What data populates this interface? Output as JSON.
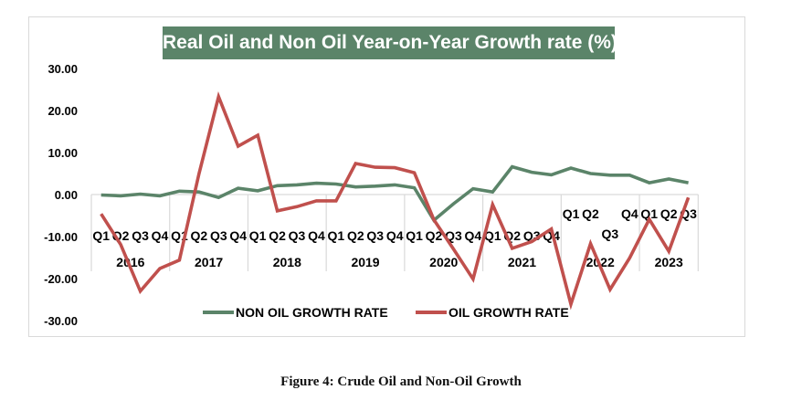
{
  "caption": "Figure 4: Crude Oil and Non-Oil Growth",
  "colors": {
    "non_oil": "#5b8469",
    "oil": "#c0504d",
    "title_bg": "#5b8469",
    "grid": "#d9d9d9"
  },
  "chart_data": {
    "type": "line",
    "title": "Real Oil and Non Oil Year-on-Year Growth rate (%)",
    "xlabel": "",
    "ylabel": "",
    "ylim": [
      -30,
      30
    ],
    "yticks": [
      "30.00",
      "20.00",
      "10.00",
      "0.00",
      "-10.00",
      "-20.00",
      "-30.00"
    ],
    "grid": false,
    "legend_position": "bottom",
    "years": [
      {
        "label": "2016",
        "quarters": [
          "Q1",
          "Q2",
          "Q3",
          "Q4"
        ]
      },
      {
        "label": "2017",
        "quarters": [
          "Q1",
          "Q2",
          "Q3",
          "Q4"
        ]
      },
      {
        "label": "2018",
        "quarters": [
          "Q1",
          "Q2",
          "Q3",
          "Q4"
        ]
      },
      {
        "label": "2019",
        "quarters": [
          "Q1",
          "Q2",
          "Q3",
          "Q4"
        ]
      },
      {
        "label": "2020",
        "quarters": [
          "Q1",
          "Q2",
          "Q3",
          "Q4"
        ]
      },
      {
        "label": "2021",
        "quarters": [
          "Q1",
          "Q2",
          "Q3",
          "Q4"
        ]
      },
      {
        "label": "2022",
        "quarters": [
          "Q1",
          "Q2",
          "Q3",
          "Q4"
        ]
      },
      {
        "label": "2023",
        "quarters": [
          "Q1",
          "Q2",
          "Q3"
        ]
      }
    ],
    "series": [
      {
        "name": "NON OIL GROWTH RATE",
        "values": [
          -0.1,
          -0.3,
          0.1,
          -0.3,
          0.8,
          0.6,
          -0.7,
          1.5,
          0.9,
          2.1,
          2.3,
          2.7,
          2.5,
          1.8,
          2.0,
          2.3,
          1.6,
          -6.1,
          -2.2,
          1.4,
          0.6,
          6.6,
          5.3,
          4.7,
          6.3,
          5.0,
          4.6,
          4.6,
          2.8,
          3.7,
          2.8
        ]
      },
      {
        "name": "OIL GROWTH RATE",
        "values": [
          -4.6,
          -11.9,
          -23.0,
          -17.6,
          -15.6,
          5.0,
          23.3,
          11.5,
          14.1,
          -3.9,
          -2.9,
          -1.5,
          -1.5,
          7.4,
          6.5,
          6.4,
          5.2,
          -6.0,
          -13.0,
          -20.1,
          -2.4,
          -12.8,
          -11.2,
          -8.2,
          -26.1,
          -11.7,
          -22.6,
          -15.1,
          -5.9,
          -13.5,
          -0.7
        ]
      }
    ]
  }
}
